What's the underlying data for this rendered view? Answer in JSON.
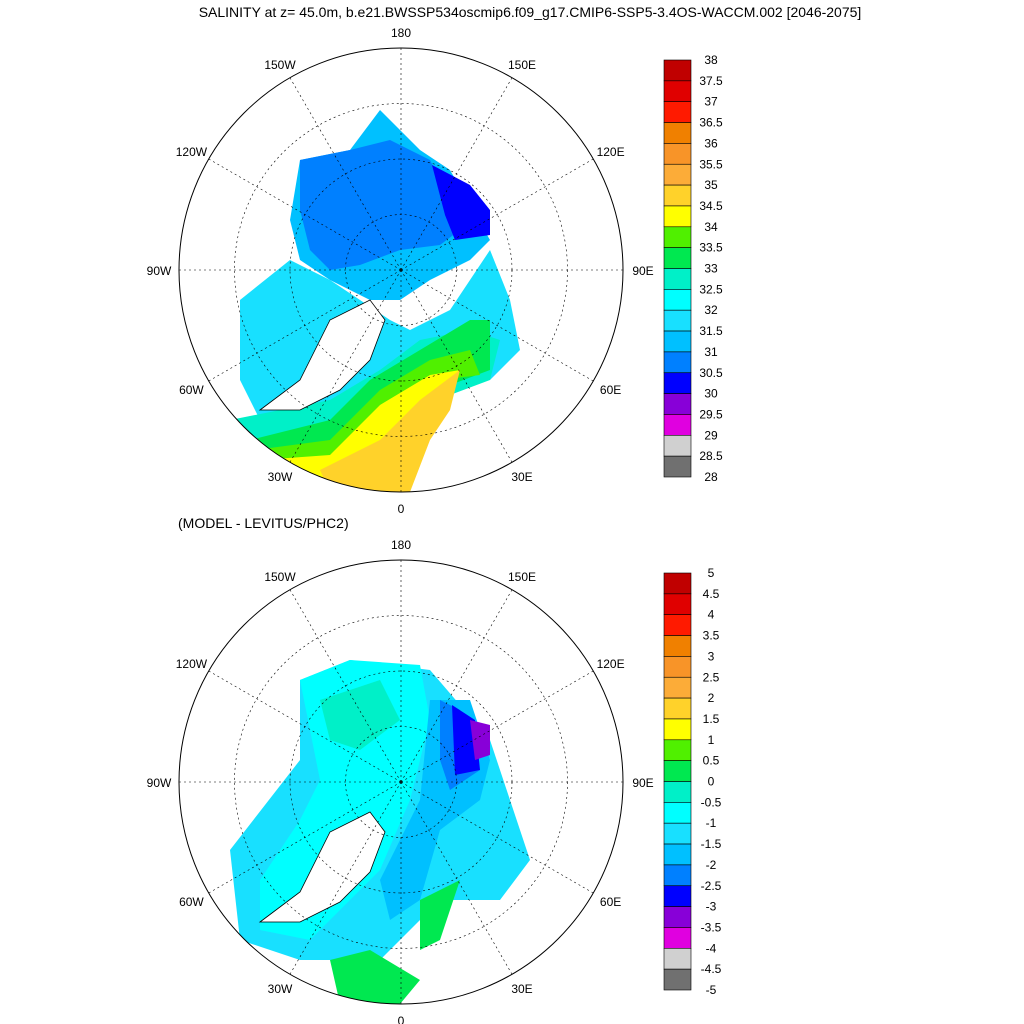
{
  "title": "SALINITY at z=  45.0m, b.e21.BWSSP534oscmip6.f09_g17.CMIP6-SSP5-3.4OS-WACCM.002 [2046-2075]",
  "subtitle": "(MODEL - LEVITUS/PHC2)",
  "lon_labels": [
    "180",
    "150E",
    "120E",
    "90E",
    "60E",
    "30E",
    "0",
    "30W",
    "60W",
    "90W",
    "120W",
    "150W"
  ],
  "palette": [
    "#c00000",
    "#e00000",
    "#ff1a00",
    "#f08000",
    "#f89428",
    "#fcac38",
    "#ffd22a",
    "#ffff00",
    "#50f000",
    "#00e850",
    "#00f0c8",
    "#00ffff",
    "#18e0ff",
    "#00c0ff",
    "#0080ff",
    "#0000ff",
    "#8800d8",
    "#e000e0",
    "#d0d0d0",
    "#707070"
  ],
  "colorbar_top": [
    "38",
    "37.5",
    "37",
    "36.5",
    "36",
    "35.5",
    "35",
    "34.5",
    "34",
    "33.5",
    "33",
    "32.5",
    "32",
    "31.5",
    "31",
    "30.5",
    "30",
    "29.5",
    "29",
    "28.5",
    "28"
  ],
  "colorbar_bottom": [
    "5",
    "4.5",
    "4",
    "3.5",
    "3",
    "2.5",
    "2",
    "1.5",
    "1",
    "0.5",
    "0",
    "-0.5",
    "-1",
    "-1.5",
    "-2",
    "-2.5",
    "-3",
    "-3.5",
    "-4",
    "-4.5",
    "-5"
  ],
  "map_label": "sl"
}
